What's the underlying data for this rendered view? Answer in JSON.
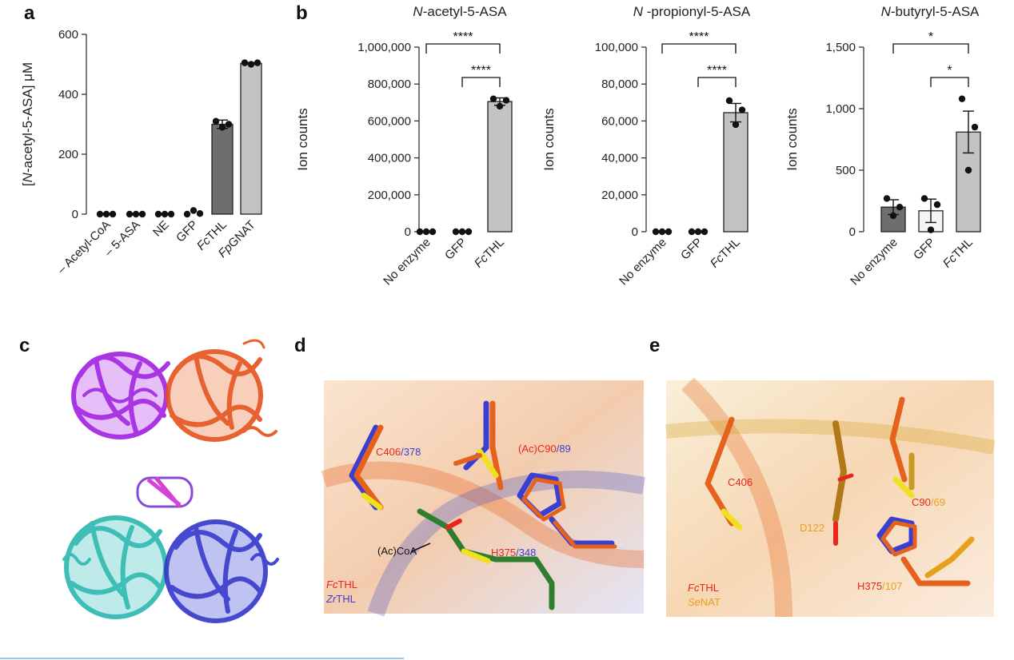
{
  "panels": {
    "a": "a",
    "b": "b",
    "c": "c",
    "d": "d",
    "e": "e"
  },
  "colors": {
    "dark": "#6e6e6e",
    "light": "#c3c3c3",
    "white": "#f4f4f4",
    "red": "#e8261e",
    "blue": "#3a3fd1",
    "orange": "#e6a11c",
    "green": "#2f7d2f",
    "black": "#111111"
  },
  "chart_data": [
    {
      "type": "bar",
      "panel": "a",
      "ylabel_pre": "[",
      "ylabel_it": "N",
      "ylabel_post": "-acetyl-5-ASA] μM",
      "ylim": [
        0,
        600
      ],
      "yticks": [
        0,
        200,
        400,
        600
      ],
      "ytick_labels": [
        "0",
        "200",
        "400",
        "600"
      ],
      "categories": [
        "– Acetyl-CoA",
        "– 5-ASA",
        "NE",
        "GFP",
        "FcTHL",
        "FpGNAT"
      ],
      "values": [
        0,
        0,
        0,
        5,
        300,
        503
      ],
      "errors": [
        0,
        0,
        0,
        0,
        14,
        3
      ],
      "points": [
        [
          0,
          0,
          0
        ],
        [
          0,
          0,
          0
        ],
        [
          0,
          0,
          0
        ],
        [
          0,
          12,
          2
        ],
        [
          310,
          290,
          300
        ],
        [
          505,
          500,
          505
        ]
      ],
      "fills": [
        "none",
        "none",
        "none",
        "none",
        "dark",
        "light"
      ]
    },
    {
      "type": "bar",
      "panel": "b1",
      "title_it": "N",
      "title_rest": "-acetyl-5-ASA",
      "ylabel": "Ion counts",
      "ylim": [
        0,
        1000000
      ],
      "yticks": [
        0,
        200000,
        400000,
        600000,
        800000,
        1000000
      ],
      "ytick_labels": [
        "0",
        "200,000",
        "400,000",
        "600,000",
        "800,000",
        "1,000,000"
      ],
      "categories": [
        "No enzyme",
        "GFP",
        "FcTHL"
      ],
      "values": [
        0,
        0,
        705000
      ],
      "errors": [
        0,
        0,
        20000
      ],
      "points": [
        [
          0,
          0,
          0
        ],
        [
          0,
          0,
          0
        ],
        [
          720000,
          680000,
          712000
        ]
      ],
      "fills": [
        "none",
        "none",
        "light"
      ],
      "sig": [
        {
          "from": 0,
          "to": 2,
          "label": "****",
          "level": 1
        },
        {
          "from": 1,
          "to": 2,
          "label": "****",
          "level": 0
        }
      ]
    },
    {
      "type": "bar",
      "panel": "b2",
      "title_it": "N",
      "title_rest": " -propionyl-5-ASA",
      "ylabel": "Ion counts",
      "ylim": [
        0,
        100000
      ],
      "yticks": [
        0,
        20000,
        40000,
        60000,
        80000,
        100000
      ],
      "ytick_labels": [
        "0",
        "20,000",
        "40,000",
        "60,000",
        "80,000",
        "100,000"
      ],
      "categories": [
        "No enzyme",
        "GFP",
        "FcTHL"
      ],
      "values": [
        0,
        0,
        64500
      ],
      "errors": [
        0,
        0,
        5000
      ],
      "points": [
        [
          0,
          0,
          0
        ],
        [
          0,
          0,
          0
        ],
        [
          71000,
          58000,
          66000
        ]
      ],
      "fills": [
        "none",
        "none",
        "light"
      ],
      "sig": [
        {
          "from": 0,
          "to": 2,
          "label": "****",
          "level": 1
        },
        {
          "from": 1,
          "to": 2,
          "label": "****",
          "level": 0
        }
      ]
    },
    {
      "type": "bar",
      "panel": "b3",
      "title_it": "N",
      "title_rest": "-butyryl-5-ASA",
      "ylabel": "Ion counts",
      "ylim": [
        0,
        1500
      ],
      "yticks": [
        0,
        500,
        1000,
        1500
      ],
      "ytick_labels": [
        "0",
        "500",
        "1,000",
        "1,500"
      ],
      "categories": [
        "No enzyme",
        "GFP",
        "FcTHL"
      ],
      "values": [
        200,
        170,
        810
      ],
      "errors": [
        60,
        95,
        170
      ],
      "points": [
        [
          270,
          130,
          200
        ],
        [
          270,
          15,
          220
        ],
        [
          1080,
          500,
          850
        ]
      ],
      "fills": [
        "dark",
        "white",
        "light"
      ],
      "sig": [
        {
          "from": 0,
          "to": 2,
          "label": "*",
          "level": 1
        },
        {
          "from": 1,
          "to": 2,
          "label": "*",
          "level": 0
        }
      ]
    }
  ],
  "panel_d": {
    "labels": [
      {
        "red": "C406",
        "sep": "/",
        "blue": "378"
      },
      {
        "red": "(Ac)C90",
        "sep": "/",
        "blue": "89"
      },
      {
        "red": "H375",
        "sep": "/",
        "blue": "348"
      }
    ],
    "ligand": "(Ac)CoA",
    "legend": [
      {
        "it": "Fc",
        "rest": "THL",
        "color": "red"
      },
      {
        "it": "Zr",
        "rest": "THL",
        "color": "blue"
      }
    ]
  },
  "panel_e": {
    "labels": [
      {
        "red": "C406",
        "sep": "",
        "orange": ""
      },
      {
        "red": "",
        "sep": "",
        "orange": "D122"
      },
      {
        "red": "C90",
        "sep": "/",
        "orange": "69"
      },
      {
        "red": "H375",
        "sep": "/",
        "orange": "107"
      }
    ],
    "legend": [
      {
        "it": "Fc",
        "rest": "THL",
        "color": "red"
      },
      {
        "it": "Se",
        "rest": "NAT",
        "color": "orange"
      }
    ]
  }
}
